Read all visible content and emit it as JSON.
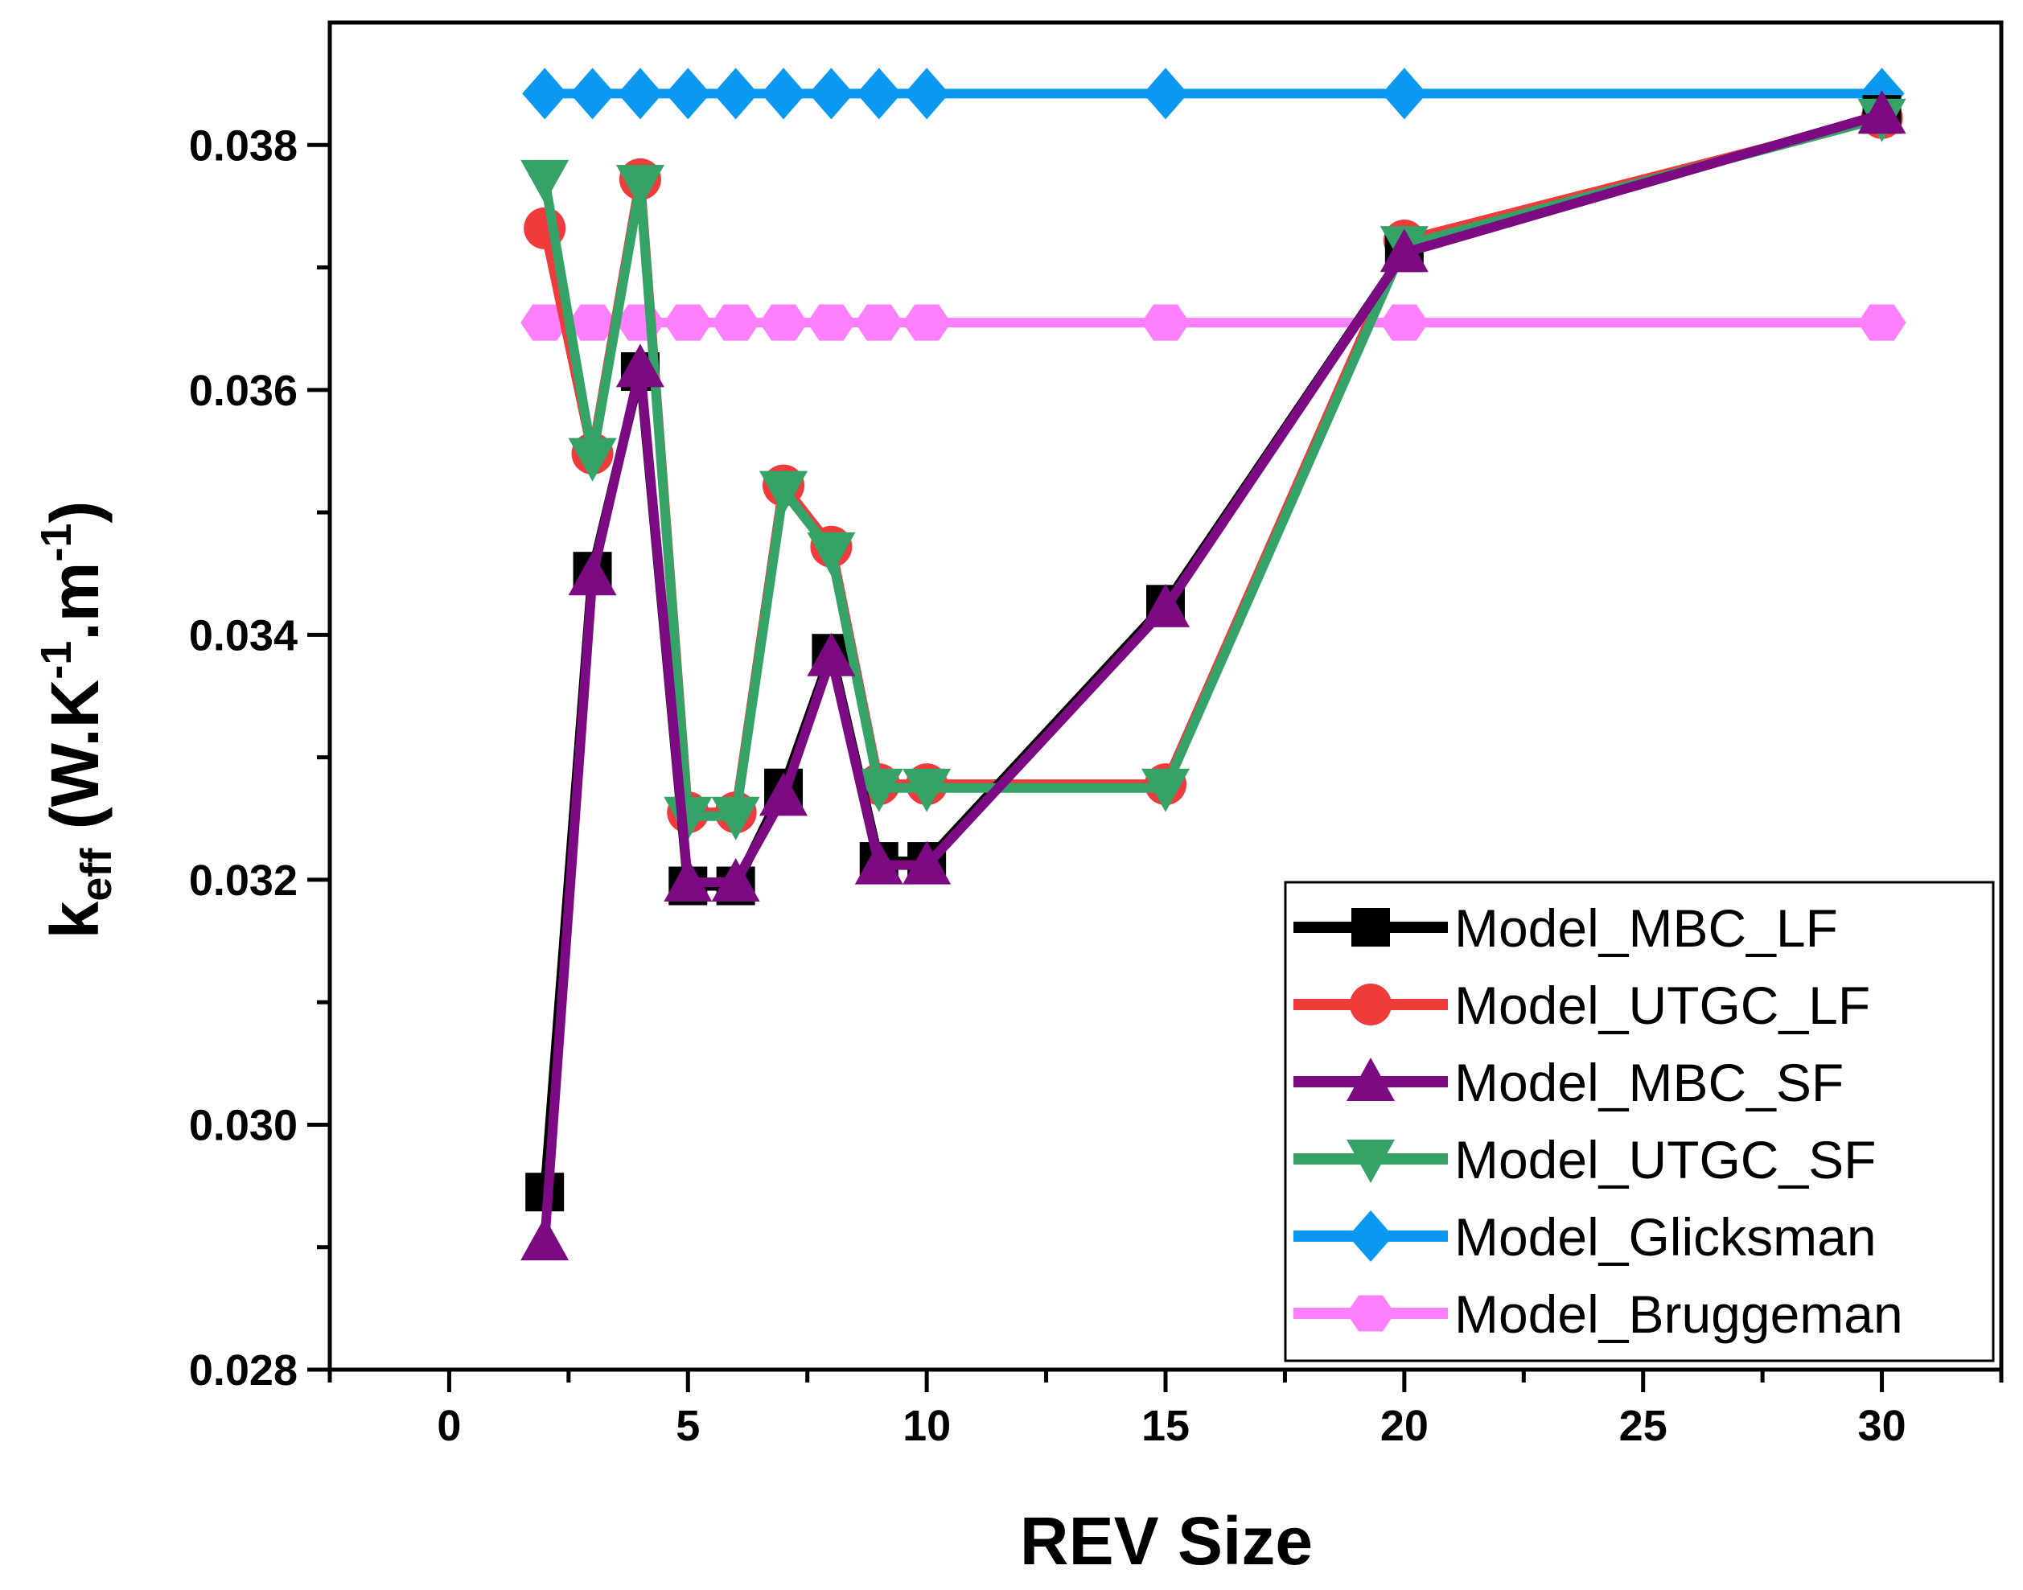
{
  "chart_data": {
    "type": "line",
    "title": "",
    "xlabel": "REV Size",
    "ylabel": {
      "base": "k",
      "base_sub": "eff",
      "paren_open": " (W.K",
      "exp1": "-1",
      "mid": ".m",
      "exp2": "-1",
      "paren_close": ")"
    },
    "xlim": [
      -2.5,
      32.5
    ],
    "ylim": [
      0.028,
      0.039
    ],
    "x_ticks": [
      0,
      5,
      10,
      15,
      20,
      25,
      30
    ],
    "x_tick_labels": [
      "0",
      "5",
      "10",
      "15",
      "20",
      "25",
      "30"
    ],
    "y_ticks": [
      0.028,
      0.03,
      0.032,
      0.034,
      0.036,
      0.038
    ],
    "y_tick_labels": [
      "0.028",
      "0.030",
      "0.032",
      "0.034",
      "0.036",
      "0.038"
    ],
    "legend_position": "bottom-right",
    "grid": false,
    "x": [
      2,
      3,
      4,
      5,
      6,
      7,
      8,
      9,
      10,
      15,
      20,
      30
    ],
    "series": [
      {
        "name": "Model_MBC_LF",
        "color": "#000000",
        "marker": "square",
        "values": [
          0.02945,
          0.03452,
          0.03615,
          0.03195,
          0.03195,
          0.03275,
          0.03385,
          0.03215,
          0.03215,
          0.03425,
          0.03712,
          0.03825
        ]
      },
      {
        "name": "Model_UTGC_LF",
        "color": "#ef3b3b",
        "marker": "circle",
        "values": [
          0.03732,
          0.03548,
          0.03772,
          0.03255,
          0.03255,
          0.03522,
          0.03472,
          0.03278,
          0.03278,
          0.03278,
          0.03722,
          0.03822
        ]
      },
      {
        "name": "Model_MBC_SF",
        "color": "#7b0a83",
        "marker": "triangle-up",
        "values": [
          0.02905,
          0.03448,
          0.03618,
          0.03198,
          0.03198,
          0.03268,
          0.03382,
          0.03212,
          0.03212,
          0.03422,
          0.03712,
          0.03825
        ]
      },
      {
        "name": "Model_UTGC_SF",
        "color": "#35a268",
        "marker": "triangle-down",
        "values": [
          0.03772,
          0.03545,
          0.03768,
          0.03252,
          0.03252,
          0.03518,
          0.03468,
          0.03275,
          0.03275,
          0.03275,
          0.03718,
          0.03822
        ]
      },
      {
        "name": "Model_Glicksman",
        "color": "#0a98f0",
        "marker": "diamond",
        "values": [
          0.03842,
          0.03842,
          0.03842,
          0.03842,
          0.03842,
          0.03842,
          0.03842,
          0.03842,
          0.03842,
          0.03842,
          0.03842,
          0.03842
        ]
      },
      {
        "name": "Model_Bruggeman",
        "color": "#ff80ff",
        "marker": "hexagon",
        "values": [
          0.03655,
          0.03655,
          0.03655,
          0.03655,
          0.03655,
          0.03655,
          0.03655,
          0.03655,
          0.03655,
          0.03655,
          0.03655,
          0.03655
        ]
      }
    ]
  }
}
